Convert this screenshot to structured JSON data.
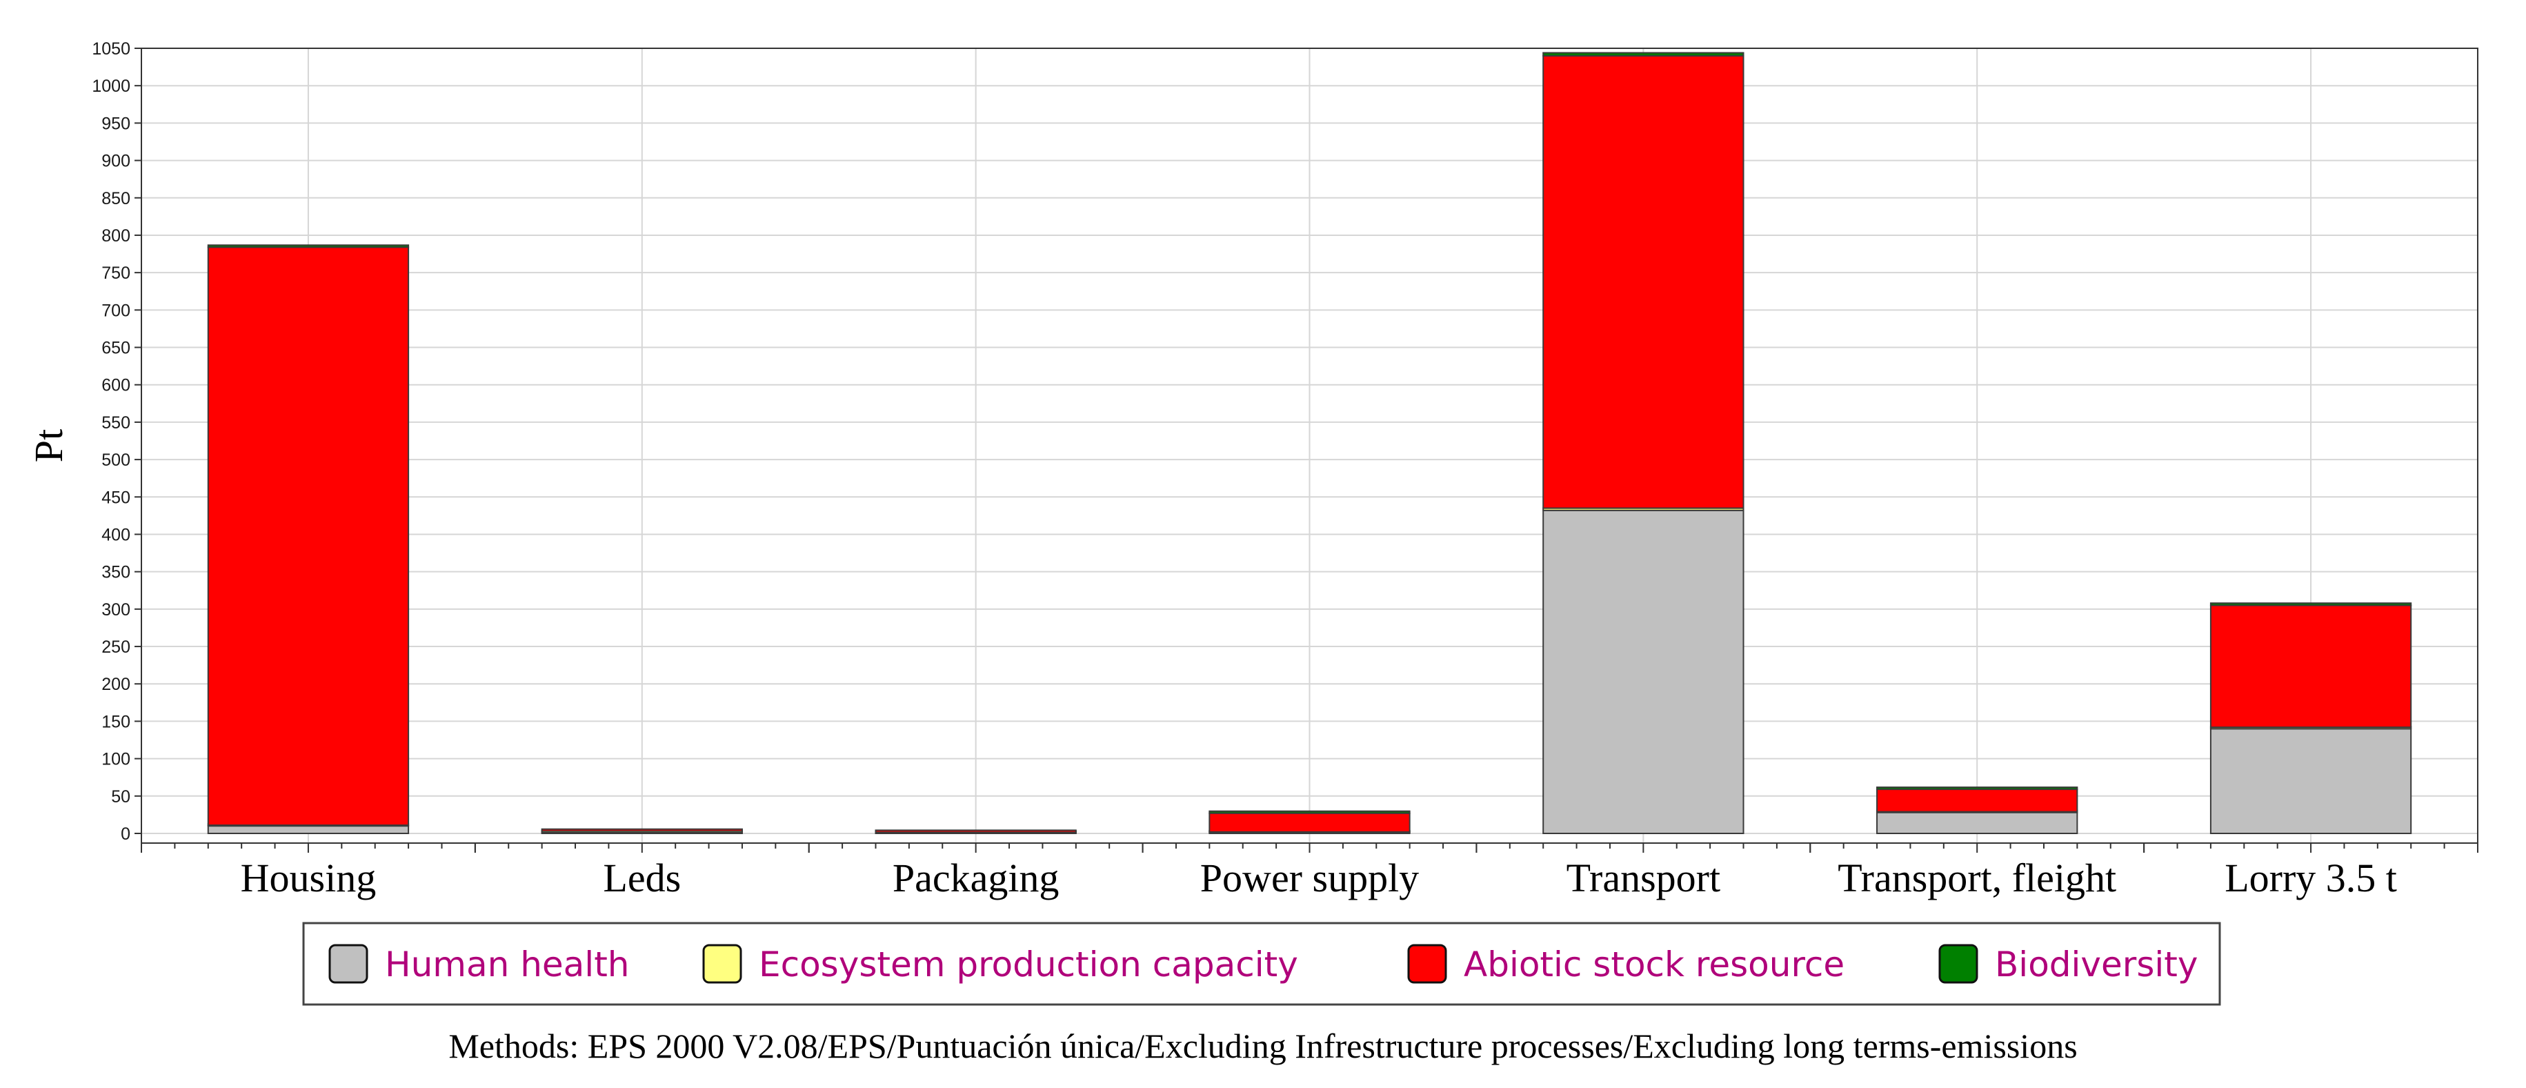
{
  "chart_data": {
    "type": "bar",
    "stacked": true,
    "ylabel": "Pt",
    "xlabel": "",
    "ylim": [
      0,
      1050
    ],
    "yticks": [
      0,
      50,
      100,
      150,
      200,
      250,
      300,
      350,
      400,
      450,
      500,
      550,
      600,
      650,
      700,
      750,
      800,
      850,
      900,
      950,
      1000,
      1050
    ],
    "grid": true,
    "legend_position": "bottom",
    "categories": [
      "Housing",
      "Leds",
      "Packaging",
      "Power supply",
      "Transport",
      "Transport, fleight",
      "Lorry 3.5 t"
    ],
    "series": [
      {
        "name": "Human health",
        "color": "#c0c0c0",
        "values": [
          10,
          1,
          0.5,
          1,
          432,
          28,
          140
        ]
      },
      {
        "name": "Ecosystem production capacity",
        "color": "#ffff80",
        "values": [
          1,
          2,
          1,
          1,
          3,
          1,
          2
        ]
      },
      {
        "name": "Abiotic stock resource",
        "color": "#ff0000",
        "values": [
          773,
          0.5,
          0.5,
          25,
          605,
          30,
          163
        ]
      },
      {
        "name": "Biodiversity",
        "color": "#008000",
        "values": [
          2,
          0,
          0,
          1,
          4,
          1,
          3
        ]
      }
    ],
    "note": "Methods: EPS 2000 V2.08/EPS/Puntuación única/Excluding Infrestructure processes/Excluding long terms-emissions"
  }
}
